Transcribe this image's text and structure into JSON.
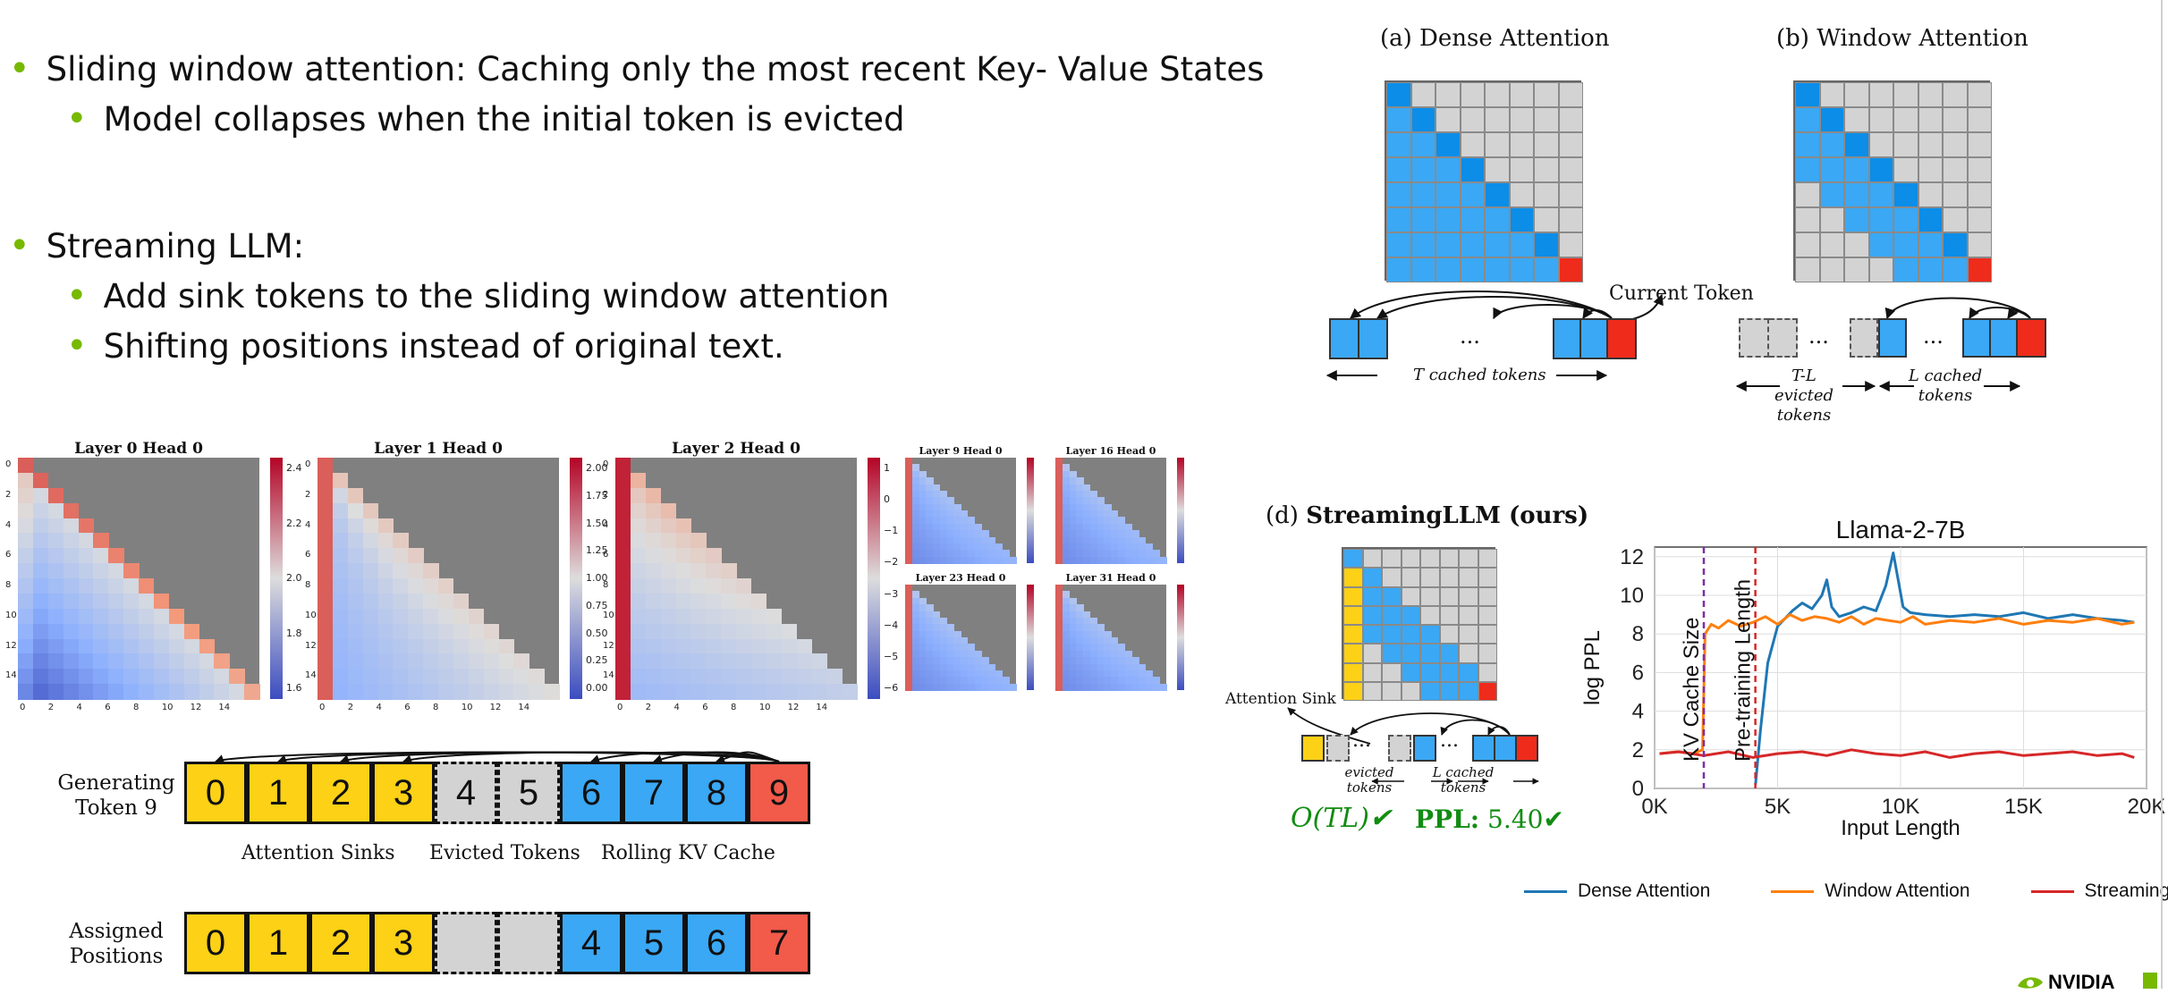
{
  "bullets": {
    "sliding": "Sliding window attention: Caching only the most recent Key- Value States",
    "collapse": "Model collapses when the initial token is evicted",
    "streaming": "Streaming LLM:",
    "sink": "Add sink tokens to the sliding window attention",
    "shift": "Shifting positions instead of original text."
  },
  "dense": {
    "title": "(a) Dense Attention",
    "current_token": "Current Token",
    "dots": "...",
    "cached": "T cached tokens"
  },
  "window": {
    "title": "(b) Window Attention",
    "dots": "...",
    "evicted": "T-L evicted tokens",
    "cached": "L cached tokens"
  },
  "streaming": {
    "title_prefix": "(d) ",
    "title_bold": "StreamingLLM (ours)",
    "sink_label": "Attention Sink",
    "dots": "...",
    "evicted": "evicted tokens",
    "cached": "L cached tokens",
    "complexity": "O(TL)✔",
    "ppl_label": "PPL:",
    "ppl_value": "5.40✔"
  },
  "heatmaps": {
    "big": [
      {
        "title": "Layer 0 Head 0",
        "ticks": [
          "2.4",
          "2.2",
          "2.0",
          "1.8",
          "1.6"
        ]
      },
      {
        "title": "Layer 1 Head 0",
        "ticks": [
          "2.00",
          "1.75",
          "1.50",
          "1.25",
          "1.00",
          "0.75",
          "0.50",
          "0.25",
          "0.00"
        ]
      },
      {
        "title": "Layer 2 Head 0",
        "ticks": [
          "1",
          "0",
          "−1",
          "−2",
          "−3",
          "−4",
          "−5",
          "−6"
        ]
      }
    ],
    "small": [
      "Layer 9 Head 0",
      "Layer 16 Head 0",
      "Layer 23 Head 0",
      "Layer 31 Head 0"
    ],
    "y_ticks": [
      "0",
      "2",
      "4",
      "6",
      "8",
      "10",
      "12",
      "14"
    ],
    "x_ticks": [
      "0",
      "2",
      "4",
      "6",
      "8",
      "10",
      "12",
      "14"
    ]
  },
  "tokens": {
    "generating_label": "Generating Token 9",
    "assigned_label": "Assigned Positions",
    "row1": [
      "0",
      "1",
      "2",
      "3",
      "4",
      "5",
      "6",
      "7",
      "8",
      "9"
    ],
    "row2": [
      "0",
      "1",
      "2",
      "3",
      "",
      "",
      "4",
      "5",
      "6",
      "7"
    ],
    "caption_sinks": "Attention Sinks",
    "caption_evicted": "Evicted Tokens",
    "caption_rolling": "Rolling KV Cache"
  },
  "chart_data": {
    "type": "line",
    "title": "Llama-2-7B",
    "xlabel": "Input Length",
    "ylabel": "log PPL",
    "x_ticks": [
      "0K",
      "5K",
      "10K",
      "15K",
      "20K"
    ],
    "y_ticks": [
      "0",
      "2",
      "4",
      "6",
      "8",
      "10",
      "12"
    ],
    "xlim": [
      0,
      20000
    ],
    "ylim": [
      0,
      12.5
    ],
    "vlines": [
      {
        "label": "KV Cache Size",
        "x": 2000,
        "color": "#7b2fa6"
      },
      {
        "label": "Pre-training Length",
        "x": 4096,
        "color": "#d62728"
      }
    ],
    "series": [
      {
        "name": "Dense Attention",
        "color": "#1f77b4",
        "x": [
          4100,
          4300,
          4600,
          5000,
          5600,
          6000,
          6400,
          6800,
          7000,
          7200,
          7500,
          8000,
          8500,
          9000,
          9400,
          9700,
          9900,
          10100,
          10400,
          11000,
          12000,
          13000,
          14000,
          15000,
          16000,
          17000,
          18000,
          19000,
          19500
        ],
        "y": [
          0.2,
          3.0,
          6.5,
          8.4,
          9.2,
          9.6,
          9.3,
          10.0,
          10.8,
          9.4,
          8.9,
          9.1,
          9.4,
          9.2,
          10.5,
          12.2,
          10.8,
          9.4,
          9.1,
          9.0,
          8.9,
          9.0,
          8.9,
          9.1,
          8.8,
          9.0,
          8.8,
          8.7,
          8.6
        ]
      },
      {
        "name": "Window Attention",
        "color": "#ff7f0e",
        "x": [
          200,
          900,
          1600,
          1950,
          2050,
          2300,
          2600,
          3000,
          3500,
          4000,
          4500,
          5000,
          5500,
          6000,
          6500,
          7000,
          7500,
          8000,
          8500,
          9000,
          9500,
          10000,
          10500,
          11000,
          12000,
          13000,
          14000,
          15000,
          16000,
          17000,
          18000,
          19000,
          19500
        ],
        "y": [
          1.8,
          1.9,
          1.8,
          2.0,
          8.0,
          8.5,
          8.3,
          8.7,
          8.4,
          8.6,
          8.9,
          8.5,
          9.0,
          8.7,
          8.9,
          8.8,
          8.6,
          8.9,
          8.5,
          8.8,
          8.7,
          8.6,
          8.9,
          8.5,
          8.7,
          8.6,
          8.8,
          8.5,
          8.7,
          8.6,
          8.8,
          8.5,
          8.6
        ]
      },
      {
        "name": "StreamingLLM",
        "color": "#d62728",
        "x": [
          200,
          1000,
          2000,
          3000,
          4000,
          5000,
          6000,
          7000,
          8000,
          9000,
          10000,
          11000,
          12000,
          13000,
          14000,
          15000,
          16000,
          17000,
          18000,
          19000,
          19500
        ],
        "y": [
          1.8,
          1.9,
          1.7,
          1.9,
          1.6,
          1.8,
          1.9,
          1.7,
          2.0,
          1.8,
          1.7,
          1.9,
          1.6,
          1.8,
          1.9,
          1.7,
          1.8,
          1.9,
          1.7,
          1.8,
          1.6
        ]
      }
    ],
    "legend": "bottom"
  },
  "colors": {
    "blue": "#3aa8f5",
    "gray": "#d3d3d3",
    "red": "#ef2b1b",
    "yellow": "#fcd116",
    "token_red": "#f25a4a",
    "nvidia_green": "#76b900",
    "green_text": "#118c11"
  },
  "logo": {
    "text": "NVIDIA"
  }
}
